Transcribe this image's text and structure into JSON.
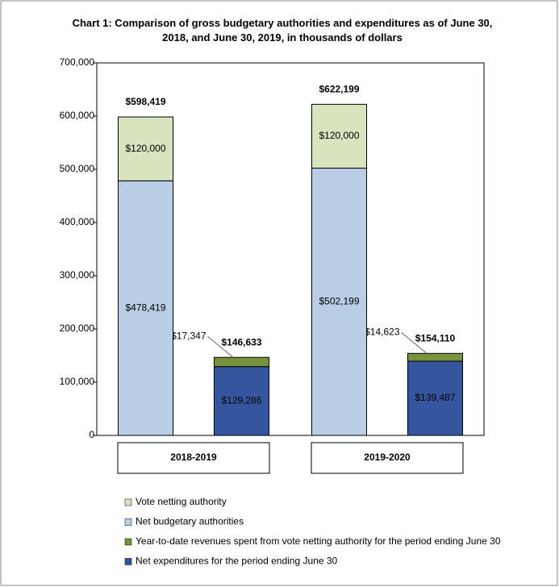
{
  "chart_data": {
    "type": "stacked_bar",
    "title": "Chart 1: Comparison of gross budgetary authorities and expenditures as of June 30, 2018, and June 30, 2019, in thousands of dollars",
    "categories": [
      "2018-2019",
      "2019-2020"
    ],
    "ylim": [
      0,
      700000
    ],
    "yticks": [
      0,
      {
        "value": 100000,
        "label": "100,000"
      },
      {
        "value": 200000,
        "label": "200,000"
      },
      {
        "value": 300000,
        "label": "300,000"
      },
      {
        "value": 400000,
        "label": "400,000"
      },
      {
        "value": 500000,
        "label": "500,000"
      },
      {
        "value": 600000,
        "label": "600,000"
      },
      {
        "value": 700000,
        "label": "700,000"
      }
    ],
    "grid": false,
    "legend": "bottom",
    "series": [
      {
        "name": "Vote netting authority",
        "color": "#d7e4bd",
        "label_color": "#000000",
        "stack": 0,
        "values": [
          120000,
          120000
        ],
        "value_labels": [
          "$120,000",
          "$120,000"
        ]
      },
      {
        "name": "Net budgetary authorities",
        "color": "#b9cde5",
        "label_color": "#000000",
        "stack": 0,
        "values": [
          478419,
          502199
        ],
        "value_labels": [
          "$478,419",
          "$502,199"
        ]
      },
      {
        "name": "Year-to-date revenues spent from vote netting authority for the period ending June 30",
        "color": "#77933c",
        "label_color": "#000000",
        "stack": 1,
        "values": [
          17347,
          14623
        ],
        "value_labels": [
          "$17,347",
          "$14,623"
        ]
      },
      {
        "name": "Net expenditures for the period ending June 30",
        "color": "#35569f",
        "label_color": "#ffffff",
        "stack": 1,
        "values": [
          129286,
          139487
        ],
        "value_labels": [
          "$129,286",
          "$139,487"
        ]
      }
    ],
    "stack_totals": [
      {
        "values": [
          598419,
          622199
        ],
        "value_labels": [
          "$598,419",
          "$622,199"
        ]
      },
      {
        "values": [
          146633,
          154110
        ],
        "value_labels": [
          "$146,633",
          "$154,110"
        ]
      }
    ]
  }
}
